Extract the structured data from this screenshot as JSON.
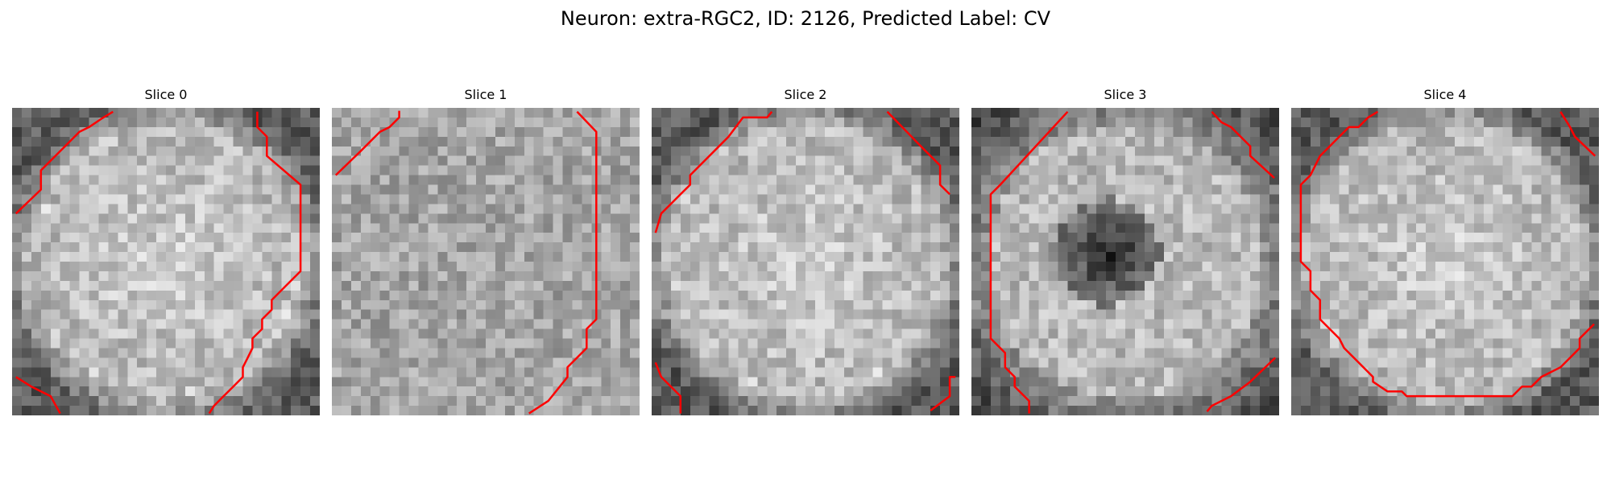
{
  "figure": {
    "title": "Neuron: extra-RGC2, ID: 2126, Predicted Label: CV"
  },
  "panels": [
    {
      "title": "Slice 0",
      "pattern": "bright-disk",
      "contour_color": "#ff0000"
    },
    {
      "title": "Slice 1",
      "pattern": "uniform-noise",
      "contour_color": "#ff0000"
    },
    {
      "title": "Slice 2",
      "pattern": "bright-disk",
      "contour_color": "#ff0000"
    },
    {
      "title": "Slice 3",
      "pattern": "dark-center",
      "contour_color": "#ff0000"
    },
    {
      "title": "Slice 4",
      "pattern": "bright-disk",
      "contour_color": "#ff0000"
    }
  ],
  "colormap": "gray"
}
